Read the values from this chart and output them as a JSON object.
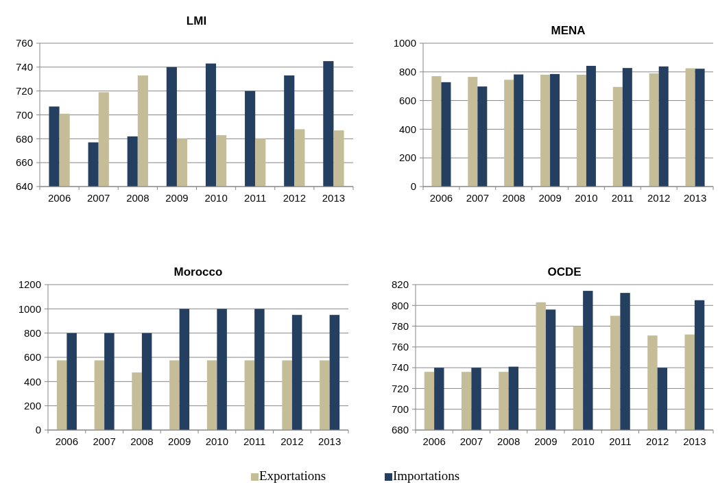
{
  "chart_data": [
    {
      "type": "bar",
      "title": "LMI",
      "categories": [
        "2006",
        "2007",
        "2008",
        "2009",
        "2010",
        "2011",
        "2012",
        "2013"
      ],
      "series": [
        {
          "color": "#253f60",
          "values": [
            707,
            677,
            682,
            740,
            743,
            720,
            733,
            745
          ]
        },
        {
          "color": "#c4bd97",
          "values": [
            701,
            719,
            733,
            680,
            683,
            680,
            688,
            687
          ]
        }
      ],
      "ylim": [
        640,
        760
      ],
      "yticks": [
        640,
        660,
        680,
        700,
        720,
        740,
        760
      ],
      "grid": "y"
    },
    {
      "type": "bar",
      "title": "MENA",
      "categories": [
        "2006",
        "2007",
        "2008",
        "2009",
        "2010",
        "2011",
        "2012",
        "2013"
      ],
      "series": [
        {
          "color": "#c4bd97",
          "values": [
            770,
            765,
            745,
            780,
            780,
            695,
            790,
            825
          ]
        },
        {
          "color": "#253f60",
          "values": [
            728,
            698,
            782,
            785,
            842,
            827,
            838,
            822
          ]
        }
      ],
      "ylim": [
        0,
        1000
      ],
      "yticks": [
        0,
        200,
        400,
        600,
        800,
        1000
      ],
      "grid": "y"
    },
    {
      "type": "bar",
      "title": "Morocco",
      "categories": [
        "2006",
        "2007",
        "2008",
        "2009",
        "2010",
        "2011",
        "2012",
        "2013"
      ],
      "series": [
        {
          "color": "#c4bd97",
          "values": [
            575,
            575,
            475,
            575,
            575,
            575,
            575,
            575
          ]
        },
        {
          "color": "#253f60",
          "values": [
            800,
            800,
            800,
            1000,
            1000,
            1000,
            950,
            950
          ]
        }
      ],
      "ylim": [
        0,
        1200
      ],
      "yticks": [
        0,
        200,
        400,
        600,
        800,
        1000,
        1200
      ],
      "grid": "y"
    },
    {
      "type": "bar",
      "title": "OCDE",
      "categories": [
        "2006",
        "2007",
        "2008",
        "2009",
        "2010",
        "2011",
        "2012",
        "2013"
      ],
      "series": [
        {
          "name": "Exportations",
          "color": "#c4bd97",
          "values": [
            736,
            736,
            736,
            803,
            780,
            790,
            771,
            772
          ]
        },
        {
          "name": "Importations",
          "color": "#253f60",
          "values": [
            740,
            740,
            741,
            796,
            814,
            812,
            740,
            805
          ]
        }
      ],
      "ylim": [
        680,
        820
      ],
      "yticks": [
        680,
        700,
        720,
        740,
        760,
        780,
        800,
        820
      ],
      "grid": "y",
      "legend": "bottom"
    }
  ]
}
